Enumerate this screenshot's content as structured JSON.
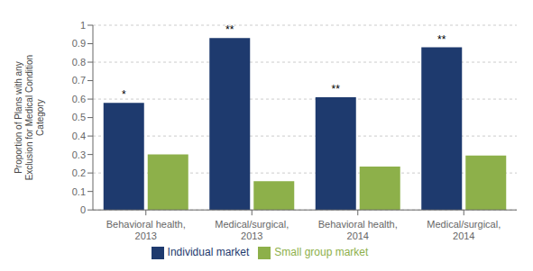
{
  "chart_data": {
    "type": "bar",
    "categories": [
      "Behavioral health,\n2013",
      "Medical/surgical,\n2013",
      "Behavioral health,\n2014",
      "Medical/surgical,\n2014"
    ],
    "series": [
      {
        "name": "Individual market",
        "color": "#1E3A6E",
        "values": [
          0.58,
          0.93,
          0.61,
          0.88
        ],
        "annotations": [
          "*",
          "**",
          "**",
          "**"
        ]
      },
      {
        "name": "Small group market",
        "color": "#8DB04A",
        "values": [
          0.3,
          0.155,
          0.235,
          0.295
        ]
      }
    ],
    "ylabel": "Proportion of Plans with any\nExclusion for Medical Condition\nCategory",
    "ylim": [
      0,
      1.0
    ],
    "yticks": [
      0,
      0.1,
      0.2,
      0.3,
      0.4,
      0.5,
      0.6,
      0.7,
      0.8,
      0.9,
      1.0
    ],
    "grid": true,
    "legend": "bottom"
  }
}
